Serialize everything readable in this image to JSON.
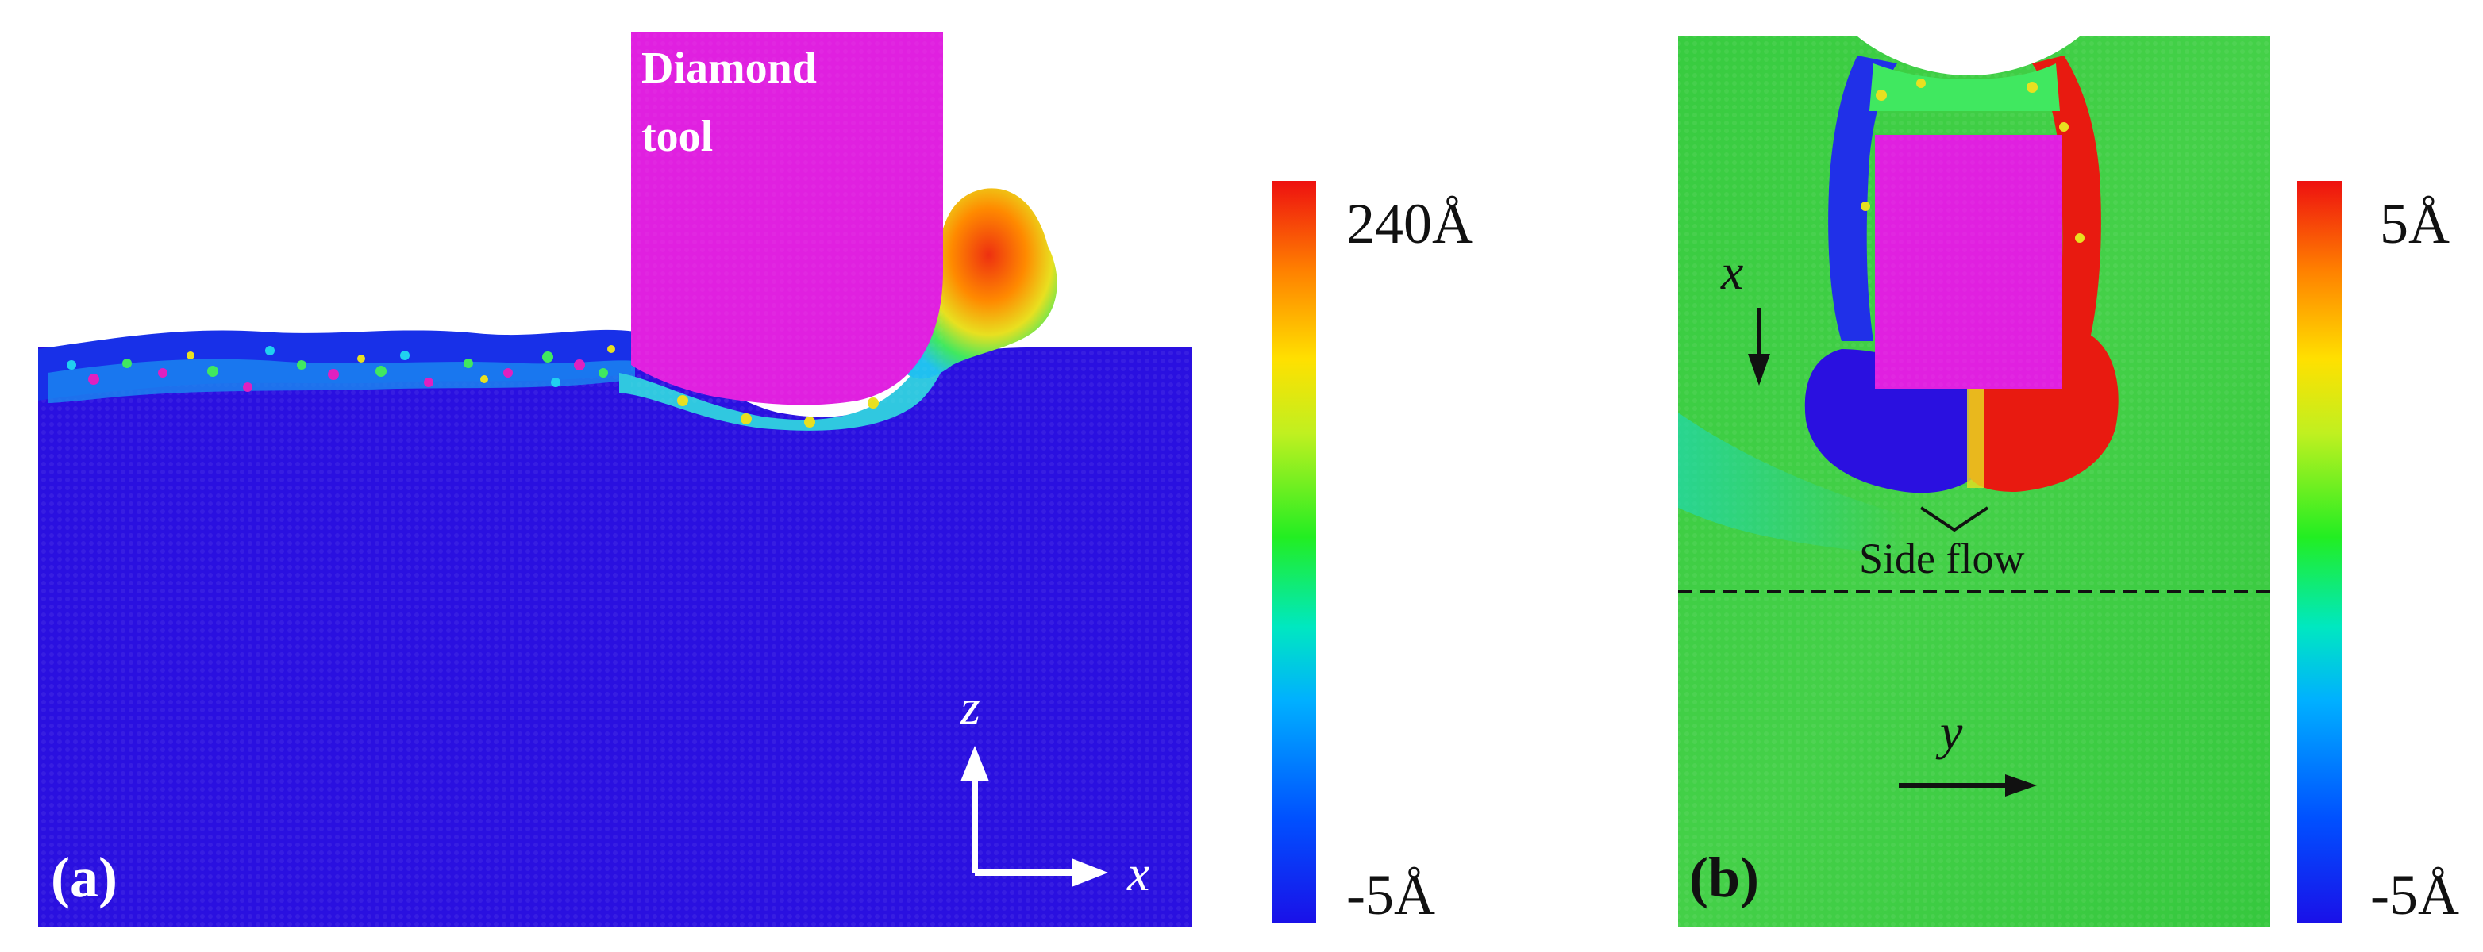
{
  "panel_a": {
    "label": "(a)",
    "tool_label_line1": "Diamond",
    "tool_label_line2": "tool",
    "axis_z": "z",
    "axis_x": "x",
    "colorbar": {
      "max_label": "240Å",
      "min_label": "-5Å"
    }
  },
  "panel_b": {
    "label": "(b)",
    "axis_x": "x",
    "axis_y": "y",
    "annotation": "Side flow",
    "colorbar": {
      "max_label": "5Å",
      "min_label": "-5Å"
    }
  },
  "colors": {
    "substrate_blue": "#2a10e0",
    "tool_magenta": "#e020e0",
    "green_field": "#33cc44",
    "red": "#e81a10",
    "jet_stops": [
      "#1a10e8",
      "#0050ff",
      "#00b0ff",
      "#00e8c0",
      "#22ee22",
      "#c0f020",
      "#ffe000",
      "#ff8000",
      "#ee1010"
    ]
  }
}
